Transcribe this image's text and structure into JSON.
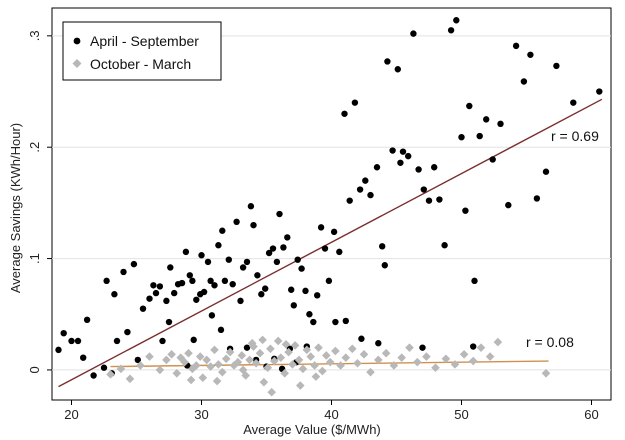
{
  "chart_data": {
    "type": "scatter",
    "xlabel": "Average Value ($/MWh)",
    "ylabel": "Average Savings (KWh/Hour)",
    "xlim": [
      18.5,
      61.5
    ],
    "ylim": [
      -0.027,
      0.325
    ],
    "xticks": [
      20,
      30,
      40,
      50,
      60
    ],
    "yticks": [
      0,
      0.1,
      0.2,
      0.3
    ],
    "yticklabels": [
      "0",
      ".1",
      ".2",
      ".3"
    ],
    "grid": "horizontal",
    "legend_position": "top-left",
    "series": [
      {
        "name": "April - September",
        "marker": "circle",
        "color": "#000000",
        "fit_line": {
          "x": [
            19.0,
            60.8
          ],
          "y": [
            -0.015,
            0.243
          ],
          "color": "#7a2e2e",
          "label": "r = 0.69"
        },
        "points": [
          [
            19.0,
            0.018
          ],
          [
            19.4,
            0.033
          ],
          [
            20.0,
            0.026
          ],
          [
            20.5,
            0.026
          ],
          [
            20.9,
            0.011
          ],
          [
            21.2,
            0.045
          ],
          [
            21.7,
            -0.005
          ],
          [
            22.5,
            0.002
          ],
          [
            22.7,
            0.08
          ],
          [
            23.1,
            -0.003
          ],
          [
            23.3,
            0.068
          ],
          [
            23.5,
            0.026
          ],
          [
            24.0,
            0.088
          ],
          [
            24.3,
            0.034
          ],
          [
            24.8,
            0.095
          ],
          [
            25.1,
            0.009
          ],
          [
            25.5,
            0.055
          ],
          [
            26.0,
            0.064
          ],
          [
            26.3,
            0.076
          ],
          [
            26.5,
            0.069
          ],
          [
            26.8,
            0.075
          ],
          [
            27.0,
            0.026
          ],
          [
            27.3,
            0.062
          ],
          [
            27.6,
            0.092
          ],
          [
            27.9,
            0.069
          ],
          [
            28.2,
            0.077
          ],
          [
            28.5,
            0.078
          ],
          [
            28.8,
            0.106
          ],
          [
            29.1,
            0.085
          ],
          [
            29.3,
            0.08
          ],
          [
            29.6,
            0.063
          ],
          [
            29.9,
            0.068
          ],
          [
            30.0,
            0.103
          ],
          [
            30.2,
            0.07
          ],
          [
            30.5,
            0.097
          ],
          [
            30.7,
            0.08
          ],
          [
            31.0,
            0.076
          ],
          [
            31.3,
            0.112
          ],
          [
            31.6,
            0.125
          ],
          [
            31.8,
            0.08
          ],
          [
            32.1,
            0.099
          ],
          [
            32.4,
            0.077
          ],
          [
            32.7,
            0.133
          ],
          [
            33.0,
            0.062
          ],
          [
            33.2,
            0.092
          ],
          [
            33.5,
            0.097
          ],
          [
            33.8,
            0.147
          ],
          [
            34.0,
            0.13
          ],
          [
            34.3,
            0.085
          ],
          [
            34.6,
            0.068
          ],
          [
            34.9,
            0.073
          ],
          [
            35.2,
            0.105
          ],
          [
            35.5,
            0.109
          ],
          [
            35.8,
            0.097
          ],
          [
            36.0,
            0.14
          ],
          [
            36.3,
            0.11
          ],
          [
            36.6,
            0.119
          ],
          [
            36.9,
            0.072
          ],
          [
            37.1,
            0.058
          ],
          [
            37.4,
            0.099
          ],
          [
            37.7,
            0.091
          ],
          [
            38.0,
            0.071
          ],
          [
            38.3,
            0.05
          ],
          [
            38.6,
            0.043
          ],
          [
            38.9,
            0.067
          ],
          [
            39.2,
            0.128
          ],
          [
            39.5,
            0.109
          ],
          [
            39.8,
            0.08
          ],
          [
            40.2,
            0.124
          ],
          [
            40.6,
            0.106
          ],
          [
            41.0,
            0.23
          ],
          [
            41.4,
            0.152
          ],
          [
            41.8,
            0.24
          ],
          [
            42.2,
            0.162
          ],
          [
            42.6,
            0.17
          ],
          [
            43.0,
            0.157
          ],
          [
            43.5,
            0.182
          ],
          [
            43.9,
            0.111
          ],
          [
            44.3,
            0.277
          ],
          [
            44.7,
            0.197
          ],
          [
            45.1,
            0.27
          ],
          [
            45.5,
            0.196
          ],
          [
            45.9,
            0.192
          ],
          [
            46.3,
            0.302
          ],
          [
            46.7,
            0.18
          ],
          [
            47.1,
            0.162
          ],
          [
            47.5,
            0.152
          ],
          [
            47.9,
            0.182
          ],
          [
            48.3,
            0.153
          ],
          [
            48.7,
            0.112
          ],
          [
            49.2,
            0.305
          ],
          [
            49.6,
            0.314
          ],
          [
            50.0,
            0.209
          ],
          [
            50.3,
            0.143
          ],
          [
            50.6,
            0.237
          ],
          [
            51.0,
            0.08
          ],
          [
            51.4,
            0.21
          ],
          [
            51.9,
            0.225
          ],
          [
            52.4,
            0.189
          ],
          [
            53.0,
            0.221
          ],
          [
            53.6,
            0.148
          ],
          [
            54.2,
            0.291
          ],
          [
            54.8,
            0.259
          ],
          [
            55.3,
            0.283
          ],
          [
            55.8,
            0.154
          ],
          [
            56.5,
            0.178
          ],
          [
            57.3,
            0.273
          ],
          [
            58.6,
            0.24
          ],
          [
            60.6,
            0.25
          ],
          [
            33.5,
            0.02
          ],
          [
            34.2,
            0.009
          ],
          [
            35.0,
            0.003
          ],
          [
            35.6,
            0.01
          ],
          [
            36.2,
            0.001
          ],
          [
            36.8,
            0.019
          ],
          [
            37.3,
            0.007
          ],
          [
            38.1,
            0.021
          ],
          [
            27.5,
            0.043
          ],
          [
            28.9,
            0.004
          ],
          [
            29.4,
            0.027
          ],
          [
            30.8,
            0.049
          ],
          [
            31.5,
            0.036
          ],
          [
            32.2,
            0.019
          ],
          [
            40.3,
            0.043
          ],
          [
            41.1,
            0.044
          ],
          [
            42.3,
            0.028
          ],
          [
            43.6,
            0.024
          ],
          [
            44.1,
            0.094
          ],
          [
            45.3,
            0.186
          ],
          [
            47.0,
            0.02
          ],
          [
            50.9,
            0.021
          ]
        ]
      },
      {
        "name": "October - March",
        "marker": "diamond",
        "color": "#b8b8b8",
        "fit_line": {
          "x": [
            23.0,
            56.7
          ],
          "y": [
            0.003,
            0.008
          ],
          "color": "#d09050",
          "label": "r = 0.08"
        },
        "points": [
          [
            23.0,
            -0.004
          ],
          [
            23.8,
            0.001
          ],
          [
            24.5,
            -0.008
          ],
          [
            25.3,
            0.004
          ],
          [
            26.0,
            0.012
          ],
          [
            26.8,
            0.0
          ],
          [
            27.3,
            0.009
          ],
          [
            27.7,
            0.014
          ],
          [
            28.1,
            -0.003
          ],
          [
            28.4,
            0.011
          ],
          [
            28.7,
            0.007
          ],
          [
            29.0,
            0.015
          ],
          [
            29.3,
            0.001
          ],
          [
            29.6,
            0.004
          ],
          [
            29.9,
            0.012
          ],
          [
            30.1,
            -0.007
          ],
          [
            30.4,
            0.009
          ],
          [
            30.7,
            0.003
          ],
          [
            31.0,
            0.018
          ],
          [
            31.3,
            0.005
          ],
          [
            31.6,
            -0.002
          ],
          [
            31.9,
            0.01
          ],
          [
            32.2,
            0.016
          ],
          [
            32.5,
            0.004
          ],
          [
            32.8,
            0.007
          ],
          [
            33.1,
            0.013
          ],
          [
            33.4,
            -0.005
          ],
          [
            33.7,
            0.009
          ],
          [
            34.0,
            0.021
          ],
          [
            34.2,
            0.006
          ],
          [
            34.5,
            0.015
          ],
          [
            34.8,
            -0.011
          ],
          [
            35.1,
            0.002
          ],
          [
            35.3,
            0.019
          ],
          [
            35.6,
            0.008
          ],
          [
            35.9,
            0.026
          ],
          [
            36.1,
            0.011
          ],
          [
            36.4,
            -0.003
          ],
          [
            36.7,
            0.016
          ],
          [
            37.0,
            0.005
          ],
          [
            37.2,
            0.022
          ],
          [
            37.5,
            0.009
          ],
          [
            37.8,
            0.001
          ],
          [
            38.1,
            0.018
          ],
          [
            38.4,
            0.012
          ],
          [
            38.7,
            0.004
          ],
          [
            39.0,
            0.02
          ],
          [
            39.3,
            -0.001
          ],
          [
            39.6,
            0.013
          ],
          [
            39.9,
            0.007
          ],
          [
            40.3,
            0.017
          ],
          [
            40.7,
            0.004
          ],
          [
            41.1,
            0.011
          ],
          [
            41.6,
            0.019
          ],
          [
            42.0,
            0.006
          ],
          [
            42.5,
            0.014
          ],
          [
            43.0,
            -0.002
          ],
          [
            43.6,
            0.009
          ],
          [
            44.2,
            0.015
          ],
          [
            44.8,
            0.004
          ],
          [
            45.4,
            0.011
          ],
          [
            46.0,
            0.02
          ],
          [
            46.6,
            0.007
          ],
          [
            47.3,
            0.012
          ],
          [
            48.0,
            0.002
          ],
          [
            48.8,
            0.01
          ],
          [
            49.5,
            0.005
          ],
          [
            50.2,
            0.014
          ],
          [
            50.9,
            0.008
          ],
          [
            51.5,
            0.02
          ],
          [
            52.2,
            0.012
          ],
          [
            52.8,
            0.025
          ],
          [
            56.5,
            -0.003
          ],
          [
            33.9,
            0.024
          ],
          [
            34.7,
            0.027
          ],
          [
            36.5,
            0.023
          ],
          [
            38.8,
            -0.006
          ],
          [
            29.2,
            -0.009
          ],
          [
            31.2,
            -0.01
          ],
          [
            35.4,
            -0.02
          ],
          [
            37.6,
            -0.014
          ],
          [
            33.2,
            0.0
          ]
        ]
      }
    ]
  }
}
